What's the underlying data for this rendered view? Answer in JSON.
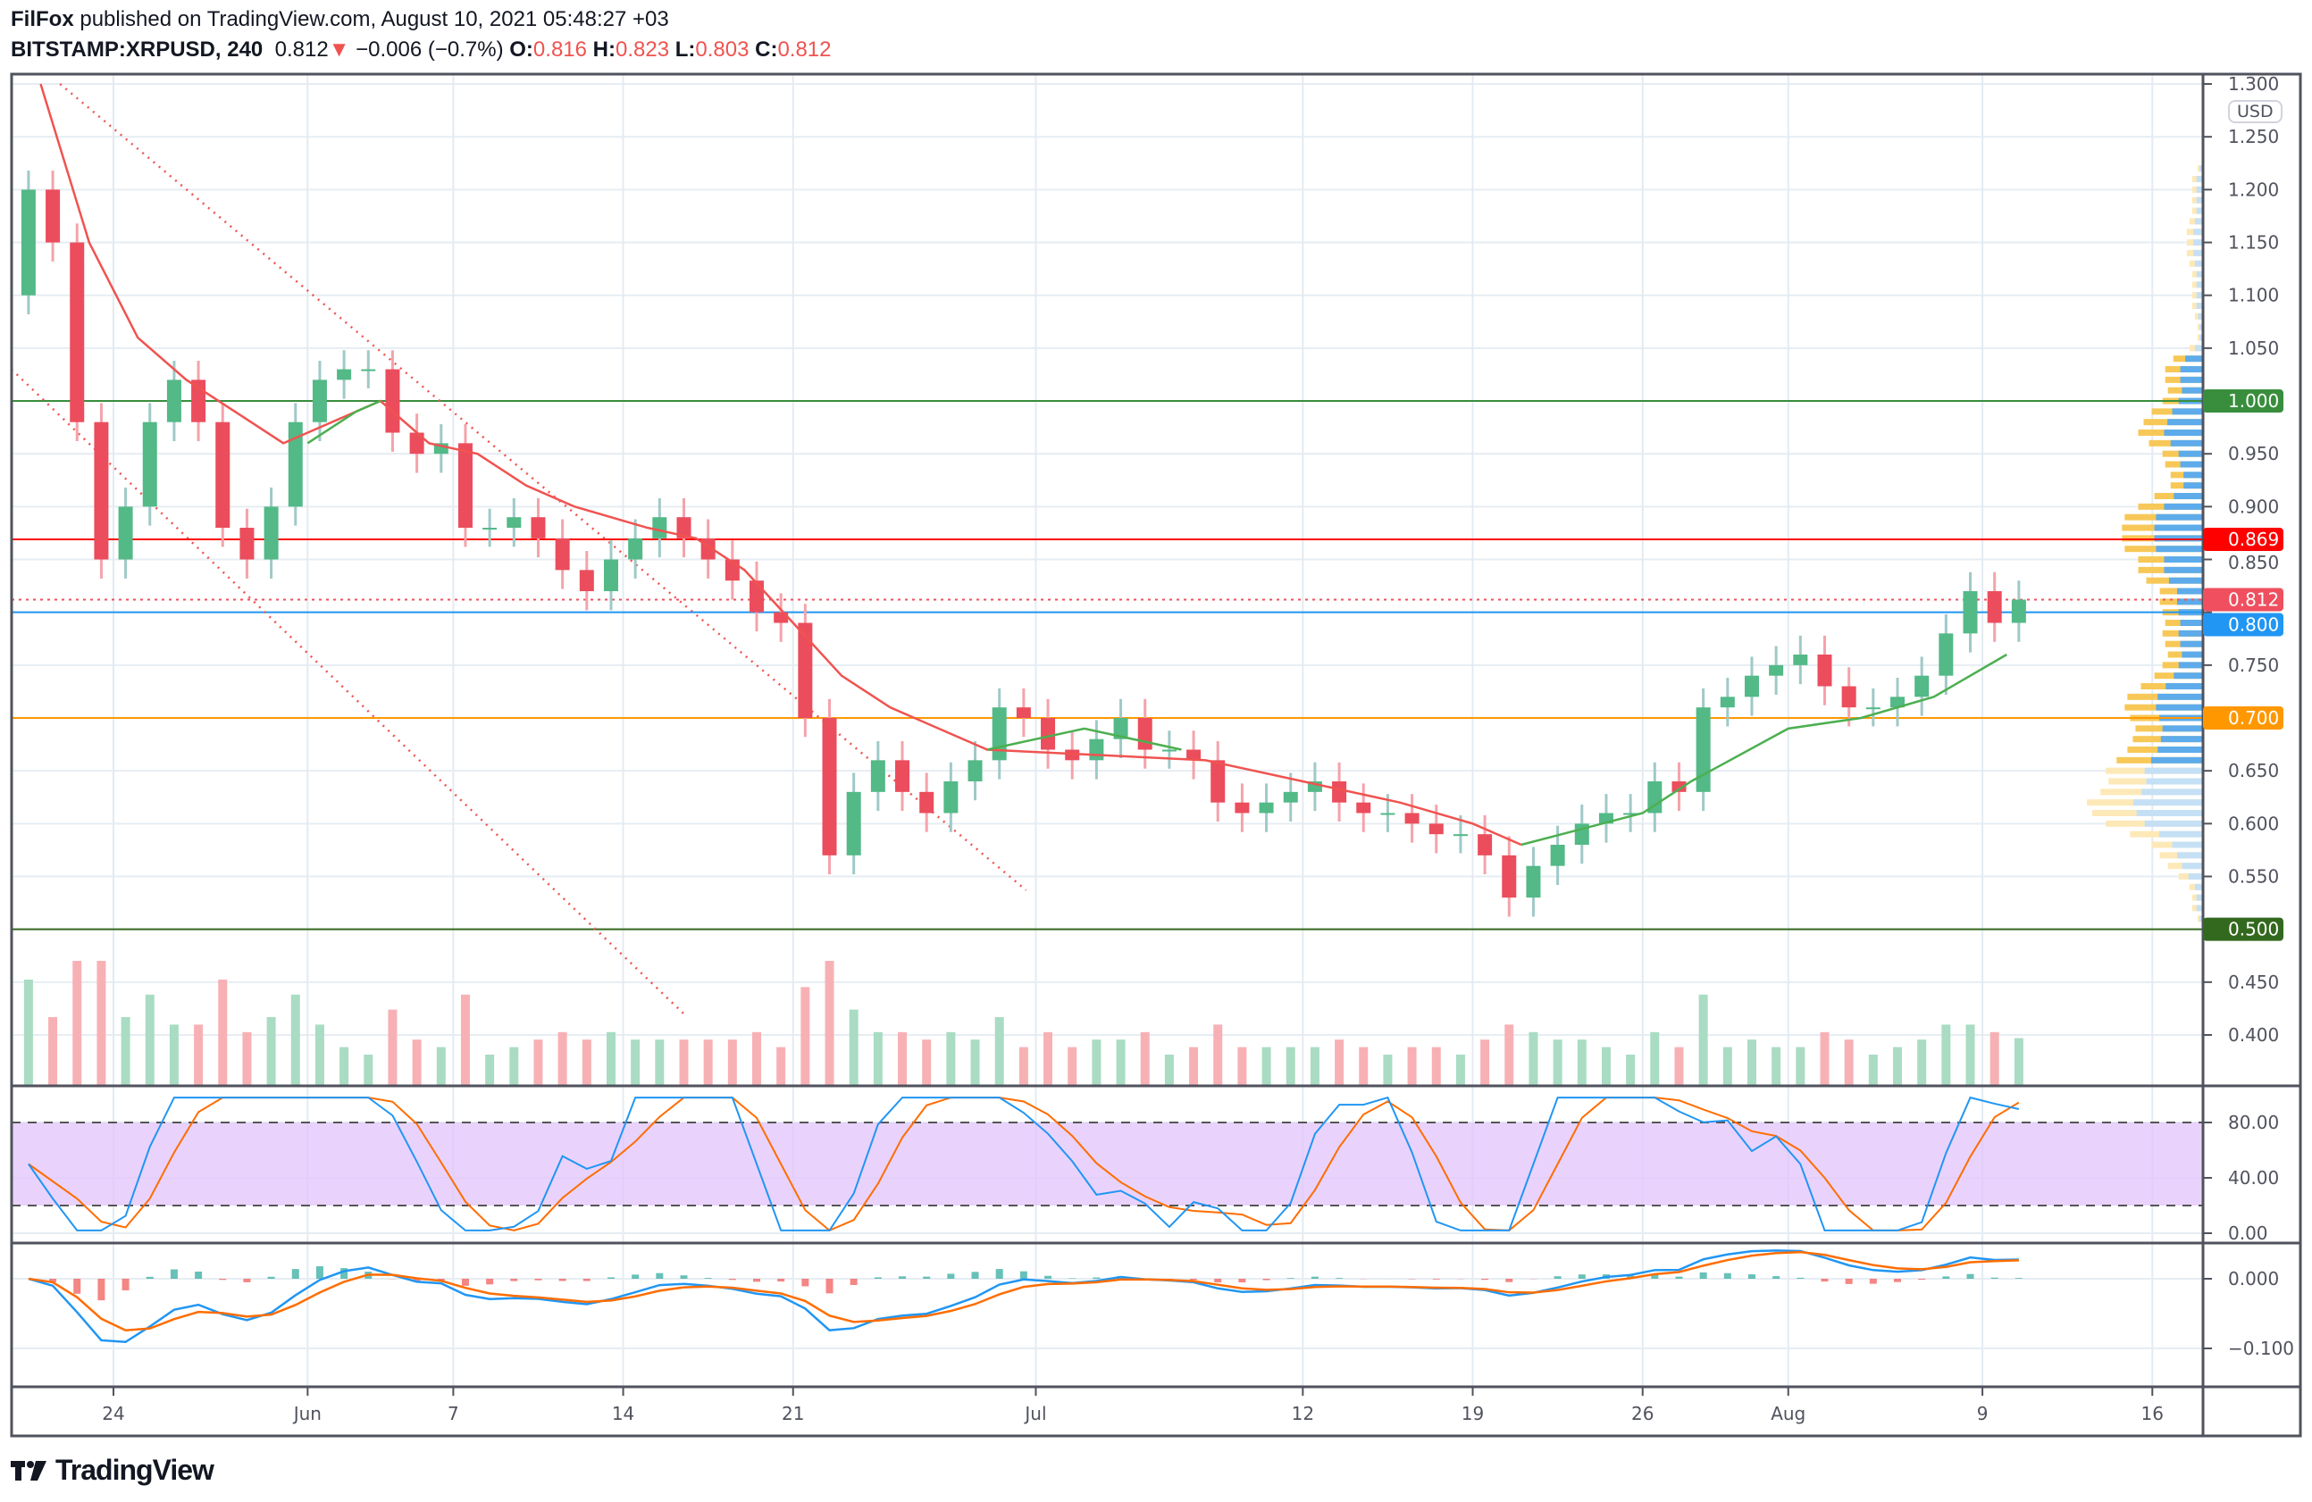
{
  "header": {
    "author": "FilFox",
    "published": "published on TradingView.com, August 10, 2021 05:48:27 +03",
    "symbol": "BITSTAMP:XRPUSD, 240",
    "last": "0.812",
    "change": "−0.006 (−0.7%)",
    "o_label": "O:",
    "o": "0.816",
    "h_label": "H:",
    "h": "0.823",
    "l_label": "L:",
    "l": "0.803",
    "c_label": "C:",
    "c": "0.812"
  },
  "currency": "USD",
  "logo": "TradingView",
  "colors": {
    "up": "#26a69a",
    "down": "#ef5350",
    "upBody": "#53b987",
    "downBody": "#eb4d5c",
    "ma_red": "#f05350",
    "ma_green": "#4caf50",
    "stoch_k": "#2196f3",
    "stoch_d": "#ff6d00",
    "band": "#e1c4fb"
  },
  "chart_data": {
    "type": "candlestick",
    "title": "BITSTAMP:XRPUSD, 240",
    "ylim": [
      0.35,
      1.31
    ],
    "yticks": [
      "1.300",
      "1.250",
      "1.200",
      "1.150",
      "1.100",
      "1.050",
      "0.950",
      "0.900",
      "0.850",
      "0.750",
      "0.650",
      "0.600",
      "0.550",
      "0.450",
      "0.400"
    ],
    "xticks": [
      {
        "label": "24",
        "day": 0
      },
      {
        "label": "Jun",
        "day": 8
      },
      {
        "label": "7",
        "day": 14
      },
      {
        "label": "14",
        "day": 21
      },
      {
        "label": "21",
        "day": 28
      },
      {
        "label": "Jul",
        "day": 38
      },
      {
        "label": "12",
        "day": 49
      },
      {
        "label": "19",
        "day": 56
      },
      {
        "label": "26",
        "day": 63
      },
      {
        "label": "Aug",
        "day": 69
      },
      {
        "label": "9",
        "day": 77
      },
      {
        "label": "16",
        "day": 84
      }
    ],
    "first_open": 1.1,
    "first_day": -4,
    "closes": [
      1.2,
      1.15,
      0.98,
      0.85,
      0.9,
      0.98,
      1.02,
      0.98,
      0.88,
      0.85,
      0.9,
      0.98,
      1.02,
      1.03,
      1.03,
      0.97,
      0.95,
      0.96,
      0.88,
      0.88,
      0.89,
      0.87,
      0.84,
      0.82,
      0.85,
      0.87,
      0.89,
      0.87,
      0.85,
      0.83,
      0.8,
      0.79,
      0.7,
      0.57,
      0.63,
      0.66,
      0.63,
      0.61,
      0.64,
      0.66,
      0.71,
      0.7,
      0.67,
      0.66,
      0.68,
      0.7,
      0.67,
      0.67,
      0.66,
      0.62,
      0.61,
      0.62,
      0.63,
      0.64,
      0.62,
      0.61,
      0.61,
      0.6,
      0.59,
      0.59,
      0.57,
      0.53,
      0.56,
      0.58,
      0.6,
      0.61,
      0.61,
      0.64,
      0.63,
      0.71,
      0.72,
      0.74,
      0.75,
      0.76,
      0.73,
      0.71,
      0.71,
      0.72,
      0.74,
      0.78,
      0.82,
      0.79,
      0.812
    ],
    "ma_red": [
      [
        -3,
        1.3
      ],
      [
        -1,
        1.15
      ],
      [
        1,
        1.06
      ],
      [
        3,
        1.02
      ],
      [
        5,
        0.99
      ],
      [
        7,
        0.96
      ],
      [
        11,
        1.0
      ],
      [
        13,
        0.96
      ],
      [
        15,
        0.95
      ],
      [
        17,
        0.92
      ],
      [
        19,
        0.9
      ],
      [
        22,
        0.88
      ],
      [
        24,
        0.87
      ],
      [
        26,
        0.84
      ],
      [
        28,
        0.79
      ],
      [
        30,
        0.74
      ],
      [
        32,
        0.71
      ],
      [
        34,
        0.69
      ],
      [
        36,
        0.67
      ],
      [
        45,
        0.66
      ],
      [
        49,
        0.64
      ],
      [
        53,
        0.62
      ],
      [
        56,
        0.6
      ],
      [
        58,
        0.58
      ]
    ],
    "ma_green": [
      [
        8,
        0.96
      ],
      [
        10,
        0.99
      ],
      [
        11,
        1.0
      ],
      [
        null,
        null
      ],
      [
        36,
        0.67
      ],
      [
        40,
        0.69
      ],
      [
        44,
        0.67
      ],
      [
        null,
        null
      ],
      [
        58,
        0.58
      ],
      [
        63,
        0.61
      ],
      [
        65,
        0.64
      ],
      [
        69,
        0.69
      ],
      [
        72,
        0.7
      ],
      [
        75,
        0.72
      ],
      [
        78,
        0.76
      ]
    ],
    "levels": [
      {
        "price": 1.0,
        "label": "1.000",
        "color": "#388e3c"
      },
      {
        "price": 0.869,
        "label": "0.869",
        "color": "#ff0000"
      },
      {
        "price": 0.812,
        "label": "0.812",
        "color": "#ef4f5f",
        "dotted": true
      },
      {
        "price": 0.8,
        "label": "0.800",
        "color": "#2196f3"
      },
      {
        "price": 0.7,
        "label": "0.700",
        "color": "#ff9800",
        "dark": true
      },
      {
        "price": 0.5,
        "label": "0.500",
        "color": "#33691e"
      }
    ],
    "trendlines": [
      [
        [
          -2.2,
          1.3
        ],
        [
          37.6,
          0.537
        ]
      ],
      [
        [
          -4.2,
          1.03
        ],
        [
          23.5,
          0.42
        ]
      ]
    ],
    "stoch": {
      "yticks": [
        "80.00",
        "40.00",
        "0.00"
      ],
      "upper": 80,
      "lower": 20
    },
    "macd": {
      "yticks": [
        "0.000",
        "−0.100"
      ]
    }
  }
}
